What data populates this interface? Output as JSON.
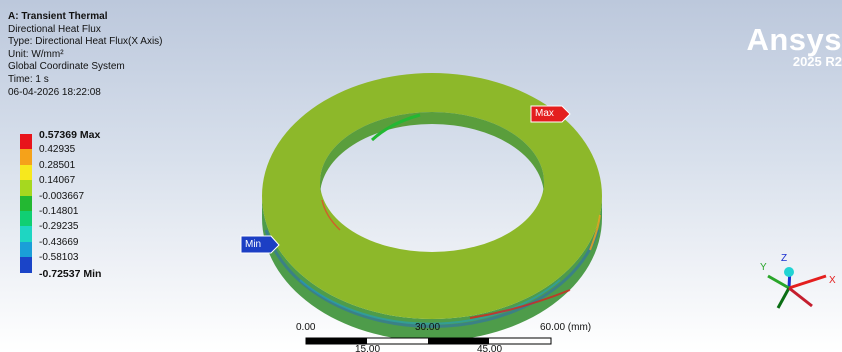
{
  "header": {
    "system": "A: Transient Thermal",
    "result": "Directional Heat Flux",
    "type": "Type: Directional Heat Flux(X Axis)",
    "unit": "Unit: W/mm²",
    "coordinate_system": "Global Coordinate System",
    "time": "Time: 1 s",
    "date": "06-04-2026 18:22:08"
  },
  "legend": {
    "max_label": "0.57369 Max",
    "min_label": "-0.72537 Min",
    "values": [
      "0.42935",
      "0.28501",
      "0.14067",
      "-0.003667",
      "-0.14801",
      "-0.29235",
      "-0.43669",
      "-0.58103"
    ],
    "colors": [
      "#e8141b",
      "#f5a21a",
      "#f7e81d",
      "#a6d81f",
      "#23b832",
      "#10cf73",
      "#1ed6c2",
      "#1a9fd8",
      "#1a44c8"
    ]
  },
  "brand": {
    "name": "Ansys",
    "version": "2025 R2"
  },
  "probes": {
    "max": "Max",
    "min": "Min"
  },
  "scale_bar": {
    "top_labels": [
      "0.00",
      "30.00",
      "60.00 (mm)"
    ],
    "bottom_labels": [
      "15.00",
      "45.00"
    ]
  },
  "triad": {
    "x": "X",
    "y": "Y",
    "z": "Z"
  },
  "colors": {
    "ring_top": "#8db82a",
    "ring_side": "#4e9c4a",
    "max_tag": "#e41e1e",
    "min_tag": "#1c3fc4",
    "brand_text": "#ffffff"
  }
}
